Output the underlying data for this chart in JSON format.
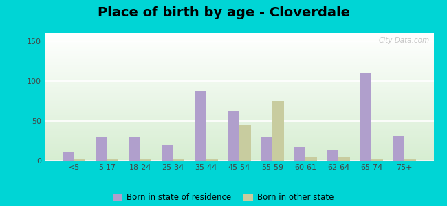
{
  "title": "Place of birth by age - Cloverdale",
  "categories": [
    "<5",
    "5-17",
    "18-24",
    "25-34",
    "35-44",
    "45-54",
    "55-59",
    "60-61",
    "62-64",
    "65-74",
    "75+"
  ],
  "born_in_state": [
    10,
    30,
    29,
    20,
    87,
    63,
    30,
    17,
    13,
    109,
    31
  ],
  "born_other_state": [
    2,
    2,
    2,
    2,
    2,
    45,
    75,
    5,
    4,
    2,
    2
  ],
  "bar_color_state": "#b09fcc",
  "bar_color_other": "#c8cc9f",
  "background_outer": "#00d5d5",
  "background_top": "#f5f5ee",
  "background_bottom": "#d8ecd4",
  "legend_state": "Born in state of residence",
  "legend_other": "Born in other state",
  "ylim": [
    0,
    160
  ],
  "yticks": [
    0,
    50,
    100,
    150
  ],
  "title_fontsize": 14,
  "watermark": "City-Data.com"
}
